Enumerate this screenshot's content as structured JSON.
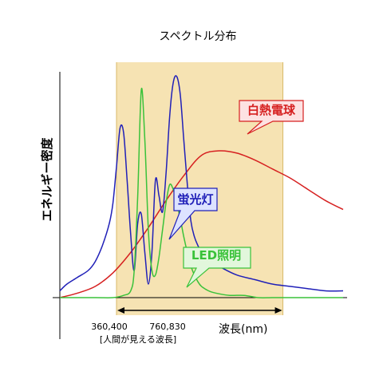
{
  "chart_data": {
    "type": "line",
    "title": "スペクトル分布",
    "xlabel": "波長(nm)",
    "ylabel": "エネルギー密度",
    "x_unit": "nm",
    "xlim": [
      200,
      1000
    ],
    "ylim": [
      0,
      1
    ],
    "grid": false,
    "visible_band": {
      "range": [
        360,
        830
      ],
      "tick_labels": [
        "360,400",
        "760,830"
      ],
      "caption": "[人間が見える波長]",
      "color": "#f6e3b3"
    },
    "series": [
      {
        "name": "白熱電球",
        "color": "#d62020",
        "label_fill": "#fde2e2",
        "x": [
          200,
          250,
          300,
          350,
          400,
          450,
          500,
          550,
          600,
          650,
          700,
          750,
          800,
          850,
          900,
          950,
          1000
        ],
        "y": [
          0.0,
          0.02,
          0.05,
          0.11,
          0.2,
          0.31,
          0.43,
          0.54,
          0.63,
          0.65,
          0.64,
          0.61,
          0.57,
          0.53,
          0.48,
          0.43,
          0.39
        ]
      },
      {
        "name": "蛍光灯",
        "color": "#2020b8",
        "label_fill": "#dde3ff",
        "x": [
          200,
          220,
          250,
          280,
          300,
          320,
          340,
          350,
          360,
          370,
          380,
          390,
          400,
          410,
          420,
          430,
          440,
          450,
          460,
          470,
          480,
          490,
          500,
          510,
          520,
          530,
          540,
          550,
          560,
          570,
          580,
          590,
          600,
          610,
          620,
          640,
          660,
          700,
          750,
          800,
          850,
          900,
          950,
          1000
        ],
        "y": [
          0.03,
          0.06,
          0.09,
          0.12,
          0.16,
          0.23,
          0.33,
          0.42,
          0.58,
          0.75,
          0.73,
          0.52,
          0.28,
          0.12,
          0.33,
          0.37,
          0.2,
          0.06,
          0.2,
          0.52,
          0.45,
          0.38,
          0.55,
          0.8,
          0.95,
          0.98,
          0.9,
          0.7,
          0.5,
          0.34,
          0.27,
          0.23,
          0.2,
          0.18,
          0.17,
          0.15,
          0.13,
          0.1,
          0.08,
          0.06,
          0.05,
          0.04,
          0.03,
          0.03
        ]
      },
      {
        "name": "LED照明",
        "color": "#3ac23a",
        "label_fill": "#e2f7dc",
        "x": [
          200,
          300,
          350,
          380,
          400,
          410,
          420,
          430,
          440,
          450,
          460,
          470,
          480,
          490,
          500,
          510,
          520,
          530,
          540,
          550,
          560,
          570,
          580,
          590,
          600,
          620,
          640,
          680,
          720,
          760,
          800,
          850,
          900,
          950,
          1000
        ],
        "y": [
          0.0,
          0.0,
          0.0,
          0.01,
          0.03,
          0.12,
          0.45,
          0.92,
          0.7,
          0.3,
          0.12,
          0.1,
          0.18,
          0.3,
          0.42,
          0.5,
          0.48,
          0.42,
          0.35,
          0.27,
          0.2,
          0.14,
          0.1,
          0.07,
          0.05,
          0.03,
          0.02,
          0.01,
          0.01,
          0.0,
          0.0,
          0.0,
          0.0,
          0.0,
          0.0
        ]
      }
    ]
  }
}
